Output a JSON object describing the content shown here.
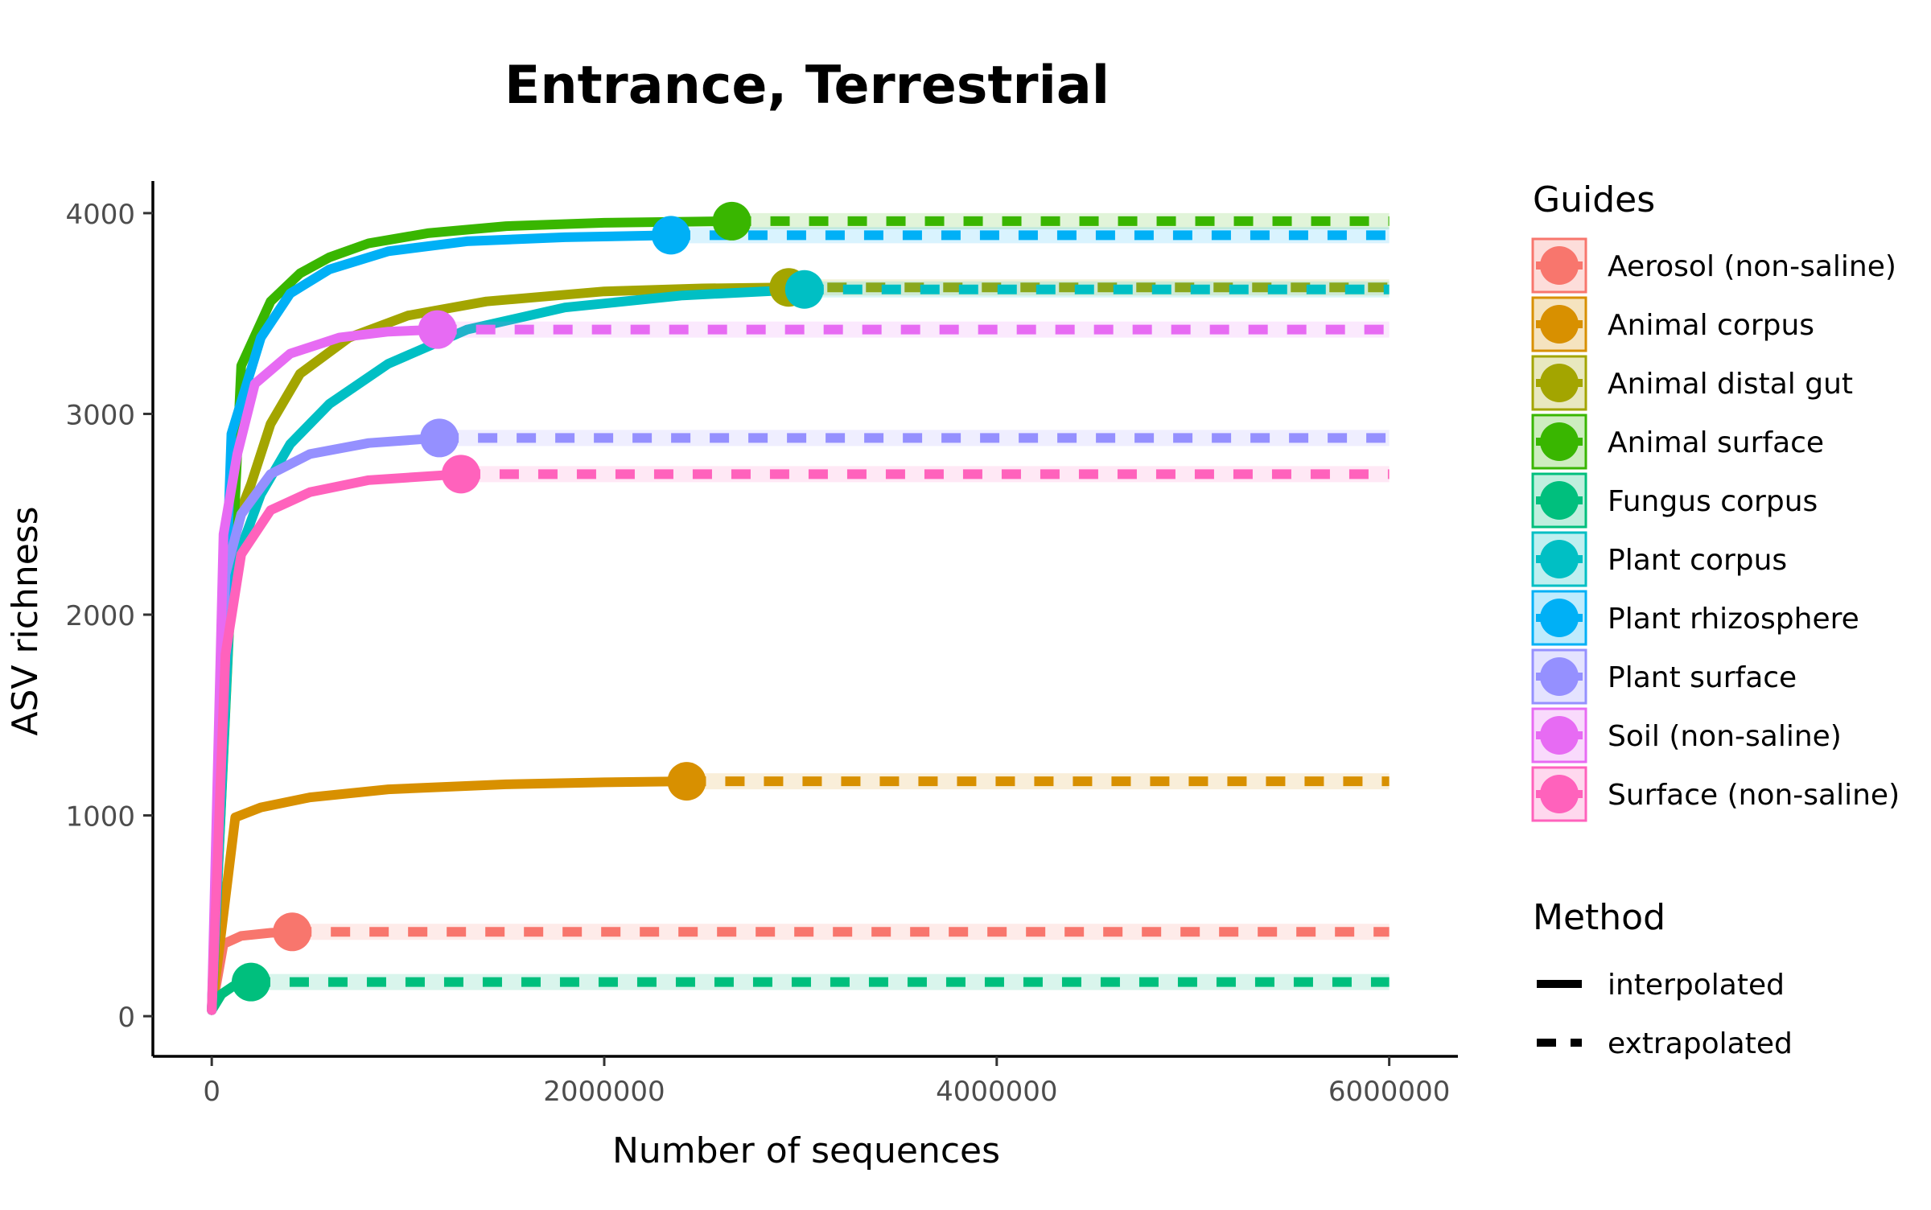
{
  "chart_data": {
    "type": "line",
    "title": "Entrance, Terrestrial",
    "xlabel": "Number of sequences",
    "ylabel": "ASV richness",
    "xlim": [
      -300000,
      6350000
    ],
    "ylim": [
      -200,
      4160
    ],
    "xticks": [
      0,
      2000000,
      4000000,
      6000000
    ],
    "xtick_labels": [
      "0",
      "2000000",
      "4000000",
      "6000000"
    ],
    "yticks": [
      0,
      1000,
      2000,
      3000,
      4000
    ],
    "ytick_labels": [
      "0",
      "1000",
      "2000",
      "3000",
      "4000"
    ],
    "x_max": 6000000,
    "grid": false,
    "legend_position": "right",
    "legend_title": "Guides",
    "method_legend": {
      "title": "Method",
      "items": [
        {
          "label": "interpolated",
          "style": "solid"
        },
        {
          "label": "extrapolated",
          "style": "dashed"
        }
      ]
    },
    "series": [
      {
        "name": "Aerosol (non-saline)",
        "color": "#F8766D",
        "asymptote": 420,
        "observed_x": 410000,
        "observed_y": 420,
        "interp": [
          [
            0,
            30
          ],
          [
            60000,
            360
          ],
          [
            150000,
            400
          ],
          [
            300000,
            415
          ],
          [
            410000,
            420
          ]
        ]
      },
      {
        "name": "Animal corpus",
        "color": "#D89000",
        "asymptote": 1170,
        "observed_x": 2420000,
        "observed_y": 1170,
        "interp": [
          [
            0,
            30
          ],
          [
            120000,
            990
          ],
          [
            250000,
            1040
          ],
          [
            500000,
            1090
          ],
          [
            900000,
            1130
          ],
          [
            1500000,
            1155
          ],
          [
            2000000,
            1165
          ],
          [
            2420000,
            1170
          ]
        ]
      },
      {
        "name": "Animal distal gut",
        "color": "#A3A500",
        "asymptote": 3630,
        "observed_x": 2940000,
        "observed_y": 3630,
        "interp": [
          [
            0,
            30
          ],
          [
            80000,
            2350
          ],
          [
            200000,
            2650
          ],
          [
            300000,
            2950
          ],
          [
            450000,
            3200
          ],
          [
            700000,
            3380
          ],
          [
            1000000,
            3490
          ],
          [
            1400000,
            3560
          ],
          [
            2000000,
            3610
          ],
          [
            2500000,
            3625
          ],
          [
            2940000,
            3630
          ]
        ]
      },
      {
        "name": "Animal surface",
        "color": "#39B600",
        "asymptote": 3960,
        "observed_x": 2650000,
        "observed_y": 3960,
        "interp": [
          [
            0,
            30
          ],
          [
            150000,
            3240
          ],
          [
            300000,
            3560
          ],
          [
            450000,
            3700
          ],
          [
            600000,
            3780
          ],
          [
            800000,
            3850
          ],
          [
            1100000,
            3900
          ],
          [
            1500000,
            3935
          ],
          [
            2000000,
            3952
          ],
          [
            2650000,
            3960
          ]
        ]
      },
      {
        "name": "Fungus corpus",
        "color": "#00BF7D",
        "asymptote": 170,
        "observed_x": 200000,
        "observed_y": 170,
        "interp": [
          [
            0,
            30
          ],
          [
            50000,
            110
          ],
          [
            110000,
            150
          ],
          [
            200000,
            170
          ]
        ]
      },
      {
        "name": "Plant corpus",
        "color": "#00BFC4",
        "asymptote": 3620,
        "observed_x": 3020000,
        "observed_y": 3620,
        "interp": [
          [
            0,
            30
          ],
          [
            100000,
            2200
          ],
          [
            250000,
            2600
          ],
          [
            400000,
            2850
          ],
          [
            600000,
            3050
          ],
          [
            900000,
            3250
          ],
          [
            1300000,
            3420
          ],
          [
            1800000,
            3530
          ],
          [
            2400000,
            3590
          ],
          [
            3020000,
            3620
          ]
        ]
      },
      {
        "name": "Plant rhizosphere",
        "color": "#00B0F6",
        "asymptote": 3890,
        "observed_x": 2340000,
        "observed_y": 3890,
        "interp": [
          [
            0,
            30
          ],
          [
            100000,
            2900
          ],
          [
            250000,
            3380
          ],
          [
            400000,
            3600
          ],
          [
            600000,
            3720
          ],
          [
            900000,
            3810
          ],
          [
            1300000,
            3860
          ],
          [
            1800000,
            3880
          ],
          [
            2340000,
            3890
          ]
        ]
      },
      {
        "name": "Plant surface",
        "color": "#9590FF",
        "asymptote": 2880,
        "observed_x": 1160000,
        "observed_y": 2880,
        "interp": [
          [
            0,
            30
          ],
          [
            70000,
            2200
          ],
          [
            150000,
            2500
          ],
          [
            300000,
            2700
          ],
          [
            500000,
            2800
          ],
          [
            800000,
            2855
          ],
          [
            1160000,
            2880
          ]
        ]
      },
      {
        "name": "Soil (non-saline)",
        "color": "#E76BF3",
        "asymptote": 3420,
        "observed_x": 1150000,
        "observed_y": 3420,
        "interp": [
          [
            0,
            30
          ],
          [
            60000,
            2400
          ],
          [
            130000,
            2800
          ],
          [
            220000,
            3150
          ],
          [
            400000,
            3300
          ],
          [
            650000,
            3380
          ],
          [
            900000,
            3410
          ],
          [
            1150000,
            3420
          ]
        ]
      },
      {
        "name": "Surface (non-saline)",
        "color": "#FF62BC",
        "asymptote": 2700,
        "observed_x": 1270000,
        "observed_y": 2700,
        "interp": [
          [
            0,
            30
          ],
          [
            70000,
            1800
          ],
          [
            150000,
            2300
          ],
          [
            300000,
            2520
          ],
          [
            500000,
            2610
          ],
          [
            800000,
            2670
          ],
          [
            1270000,
            2700
          ]
        ]
      }
    ]
  }
}
